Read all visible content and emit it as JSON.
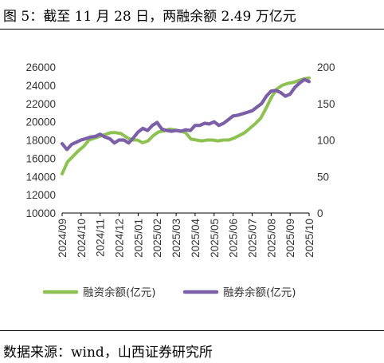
{
  "header": {
    "figure_label": "图 5：截至 11 月 28 日，两融余额 2.49 万亿元"
  },
  "footer": {
    "source": "数据来源：wind，山西证券研究所"
  },
  "colors": {
    "margin_balance": "#8dc252",
    "short_balance": "#7b60a8"
  },
  "chart_data": {
    "type": "line",
    "title": "",
    "xlabel": "",
    "ylabel": "",
    "x_tick_labels": [
      "2024/09",
      "2024/10",
      "2024/11",
      "2024/12",
      "2025/01",
      "2025/02",
      "2025/03",
      "2025/04",
      "2025/05",
      "2025/06",
      "2025/07",
      "2025/08",
      "2025/09",
      "2025/10"
    ],
    "x_range": [
      0,
      66
    ],
    "left_axis": {
      "range": [
        10000,
        26000
      ],
      "ticks": [
        10000,
        12000,
        14000,
        16000,
        18000,
        20000,
        22000,
        24000,
        26000
      ]
    },
    "right_axis": {
      "range": [
        0,
        200
      ],
      "ticks": [
        0,
        50,
        100,
        150,
        200
      ]
    },
    "grid": false,
    "legend_position": "bottom",
    "series": [
      {
        "name": "融资余额(亿元)",
        "axis": "left",
        "color": "#8dc252",
        "values": [
          14300,
          15600,
          16200,
          16800,
          17300,
          18000,
          18200,
          18400,
          18600,
          18800,
          18800,
          18700,
          18300,
          18000,
          18000,
          17700,
          17900,
          18500,
          18900,
          19000,
          19200,
          19100,
          19000,
          18800,
          18100,
          18000,
          17900,
          18000,
          18000,
          17900,
          18000,
          18000,
          18200,
          18500,
          18800,
          19300,
          19800,
          20400,
          21500,
          22700,
          23600,
          24000,
          24200,
          24300,
          24500,
          24700,
          24800
        ]
      },
      {
        "name": "融券余额(亿元)",
        "axis": "right",
        "color": "#7b60a8",
        "values": [
          95,
          87,
          94,
          97,
          100,
          102,
          104,
          105,
          108,
          104,
          102,
          96,
          100,
          100,
          96,
          103,
          111,
          116,
          113,
          120,
          124,
          115,
          113,
          112,
          113,
          112,
          114,
          113,
          120,
          120,
          123,
          122,
          125,
          120,
          123,
          128,
          133,
          134,
          136,
          138,
          140,
          145,
          150,
          160,
          167,
          168,
          165,
          160,
          163,
          172,
          178,
          183,
          180
        ]
      }
    ]
  }
}
